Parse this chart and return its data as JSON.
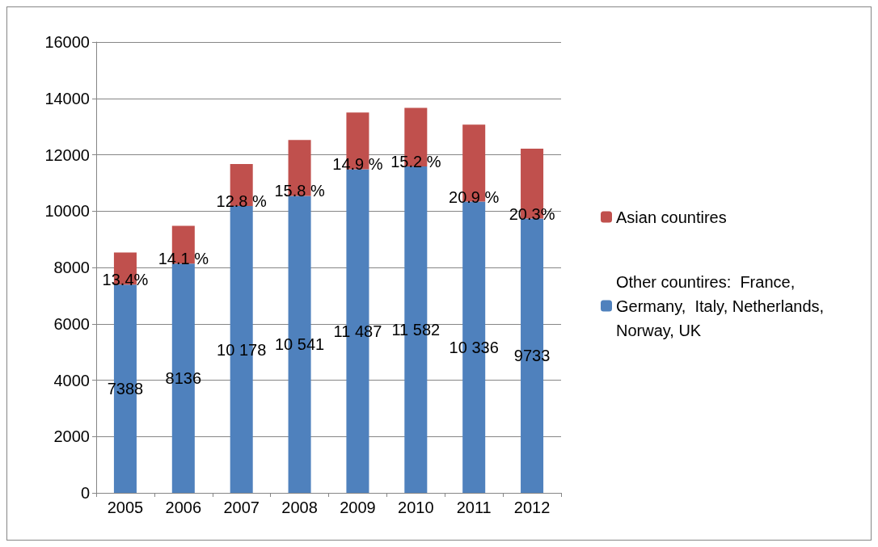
{
  "chart_data": {
    "type": "bar",
    "stacked": true,
    "categories": [
      "2005",
      "2006",
      "2007",
      "2008",
      "2009",
      "2010",
      "2011",
      "2012"
    ],
    "series": [
      {
        "name": "Other countires:  France, Germany,  Italy, Netherlands, Norway, UK",
        "color": "#4f81bd",
        "values": [
          7388,
          8136,
          10178,
          10541,
          11487,
          11582,
          10336,
          9733
        ],
        "value_labels": [
          "7388",
          "8136",
          "10 178",
          "10 541",
          "11 487",
          "11 582",
          "10 336",
          "9733"
        ]
      },
      {
        "name": "Asian countires",
        "color": "#c0504d",
        "values": [
          1140,
          1340,
          1490,
          1980,
          2010,
          2080,
          2730,
          2480
        ]
      }
    ],
    "annotations": [
      "13.4%",
      "14.1 %",
      "12.8 %",
      "15.8 %",
      "14.9 %",
      "15.2 %",
      "20.9 %",
      "20.3%"
    ],
    "ylim": [
      0,
      16000
    ],
    "yticks": [
      0,
      2000,
      4000,
      6000,
      8000,
      10000,
      12000,
      14000,
      16000
    ],
    "grid": "y",
    "legend": "right"
  }
}
